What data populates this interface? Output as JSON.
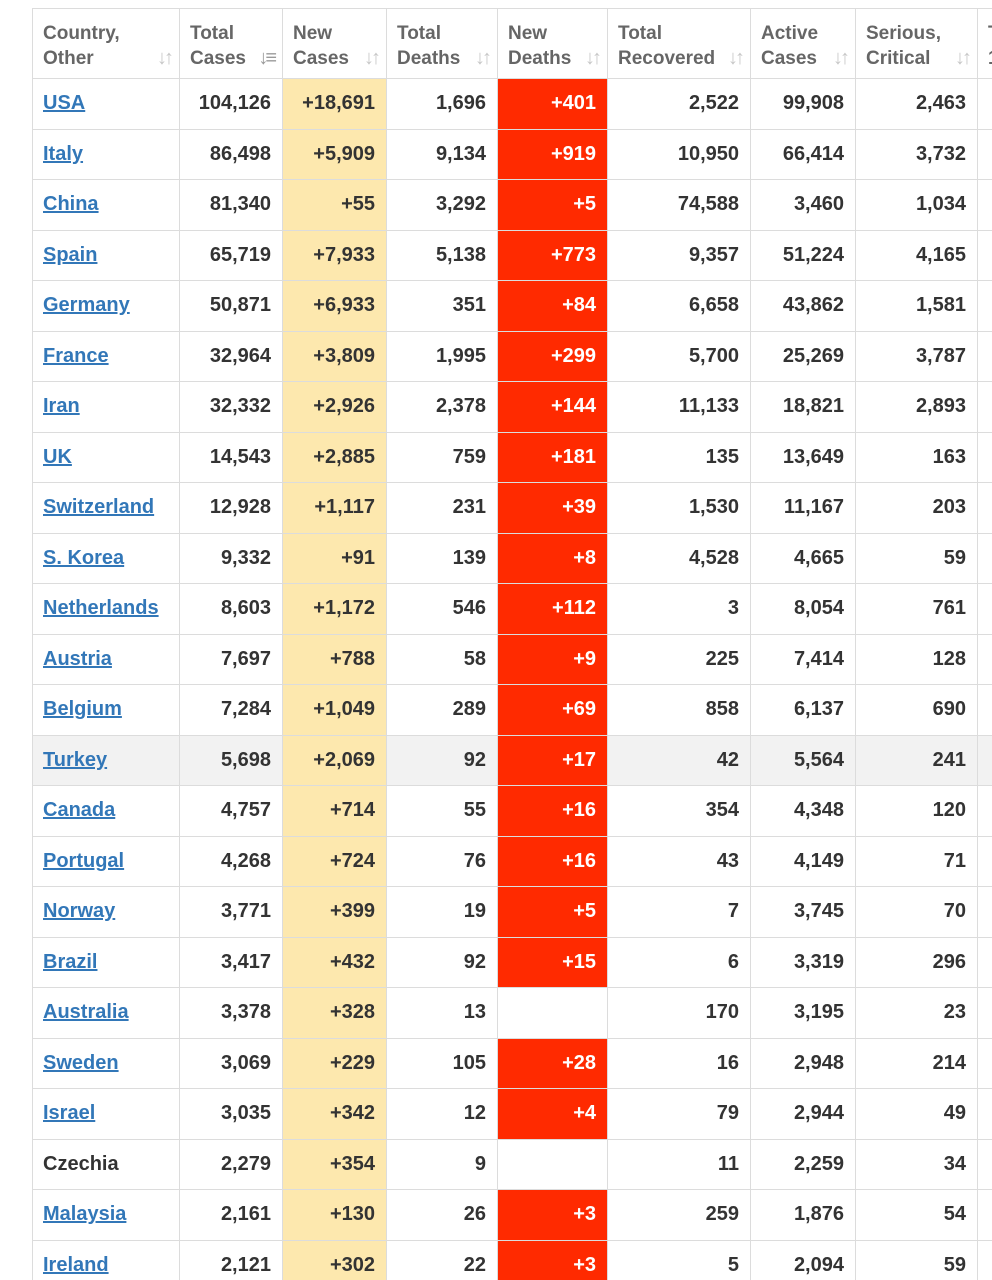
{
  "headers": [
    {
      "line1": "Country,",
      "line2": "Other",
      "sort": "↓↑",
      "active": false
    },
    {
      "line1": "Total",
      "line2": "Cases",
      "sort": "↓≡",
      "active": true
    },
    {
      "line1": "New",
      "line2": "Cases",
      "sort": "↓↑",
      "active": false
    },
    {
      "line1": "Total",
      "line2": "Deaths",
      "sort": "↓↑",
      "active": false
    },
    {
      "line1": "New",
      "line2": "Deaths",
      "sort": "↓↑",
      "active": false
    },
    {
      "line1": "Total",
      "line2": "Recovered",
      "sort": "↓↑",
      "active": false
    },
    {
      "line1": "Active",
      "line2": "Cases",
      "sort": "↓↑",
      "active": false
    },
    {
      "line1": "Serious,",
      "line2": "Critical",
      "sort": "↓↑",
      "active": false
    },
    {
      "line1": "T",
      "line2": "1",
      "sort": "",
      "active": false
    }
  ],
  "rows": [
    {
      "country": "USA",
      "link": true,
      "total_cases": "104,126",
      "new_cases": "+18,691",
      "total_deaths": "1,696",
      "new_deaths": "+401",
      "total_recovered": "2,522",
      "active_cases": "99,908",
      "serious_critical": "2,463"
    },
    {
      "country": "Italy",
      "link": true,
      "total_cases": "86,498",
      "new_cases": "+5,909",
      "total_deaths": "9,134",
      "new_deaths": "+919",
      "total_recovered": "10,950",
      "active_cases": "66,414",
      "serious_critical": "3,732"
    },
    {
      "country": "China",
      "link": true,
      "total_cases": "81,340",
      "new_cases": "+55",
      "total_deaths": "3,292",
      "new_deaths": "+5",
      "total_recovered": "74,588",
      "active_cases": "3,460",
      "serious_critical": "1,034"
    },
    {
      "country": "Spain",
      "link": true,
      "total_cases": "65,719",
      "new_cases": "+7,933",
      "total_deaths": "5,138",
      "new_deaths": "+773",
      "total_recovered": "9,357",
      "active_cases": "51,224",
      "serious_critical": "4,165"
    },
    {
      "country": "Germany",
      "link": true,
      "total_cases": "50,871",
      "new_cases": "+6,933",
      "total_deaths": "351",
      "new_deaths": "+84",
      "total_recovered": "6,658",
      "active_cases": "43,862",
      "serious_critical": "1,581"
    },
    {
      "country": "France",
      "link": true,
      "total_cases": "32,964",
      "new_cases": "+3,809",
      "total_deaths": "1,995",
      "new_deaths": "+299",
      "total_recovered": "5,700",
      "active_cases": "25,269",
      "serious_critical": "3,787"
    },
    {
      "country": "Iran",
      "link": true,
      "total_cases": "32,332",
      "new_cases": "+2,926",
      "total_deaths": "2,378",
      "new_deaths": "+144",
      "total_recovered": "11,133",
      "active_cases": "18,821",
      "serious_critical": "2,893"
    },
    {
      "country": "UK",
      "link": true,
      "total_cases": "14,543",
      "new_cases": "+2,885",
      "total_deaths": "759",
      "new_deaths": "+181",
      "total_recovered": "135",
      "active_cases": "13,649",
      "serious_critical": "163"
    },
    {
      "country": "Switzerland",
      "link": true,
      "total_cases": "12,928",
      "new_cases": "+1,117",
      "total_deaths": "231",
      "new_deaths": "+39",
      "total_recovered": "1,530",
      "active_cases": "11,167",
      "serious_critical": "203"
    },
    {
      "country": "S. Korea",
      "link": true,
      "total_cases": "9,332",
      "new_cases": "+91",
      "total_deaths": "139",
      "new_deaths": "+8",
      "total_recovered": "4,528",
      "active_cases": "4,665",
      "serious_critical": "59"
    },
    {
      "country": "Netherlands",
      "link": true,
      "total_cases": "8,603",
      "new_cases": "+1,172",
      "total_deaths": "546",
      "new_deaths": "+112",
      "total_recovered": "3",
      "active_cases": "8,054",
      "serious_critical": "761"
    },
    {
      "country": "Austria",
      "link": true,
      "total_cases": "7,697",
      "new_cases": "+788",
      "total_deaths": "58",
      "new_deaths": "+9",
      "total_recovered": "225",
      "active_cases": "7,414",
      "serious_critical": "128"
    },
    {
      "country": "Belgium",
      "link": true,
      "total_cases": "7,284",
      "new_cases": "+1,049",
      "total_deaths": "289",
      "new_deaths": "+69",
      "total_recovered": "858",
      "active_cases": "6,137",
      "serious_critical": "690"
    },
    {
      "country": "Turkey",
      "link": true,
      "highlight": true,
      "total_cases": "5,698",
      "new_cases": "+2,069",
      "total_deaths": "92",
      "new_deaths": "+17",
      "total_recovered": "42",
      "active_cases": "5,564",
      "serious_critical": "241"
    },
    {
      "country": "Canada",
      "link": true,
      "total_cases": "4,757",
      "new_cases": "+714",
      "total_deaths": "55",
      "new_deaths": "+16",
      "total_recovered": "354",
      "active_cases": "4,348",
      "serious_critical": "120"
    },
    {
      "country": "Portugal",
      "link": true,
      "total_cases": "4,268",
      "new_cases": "+724",
      "total_deaths": "76",
      "new_deaths": "+16",
      "total_recovered": "43",
      "active_cases": "4,149",
      "serious_critical": "71"
    },
    {
      "country": "Norway",
      "link": true,
      "total_cases": "3,771",
      "new_cases": "+399",
      "total_deaths": "19",
      "new_deaths": "+5",
      "total_recovered": "7",
      "active_cases": "3,745",
      "serious_critical": "70"
    },
    {
      "country": "Brazil",
      "link": true,
      "total_cases": "3,417",
      "new_cases": "+432",
      "total_deaths": "92",
      "new_deaths": "+15",
      "total_recovered": "6",
      "active_cases": "3,319",
      "serious_critical": "296"
    },
    {
      "country": "Australia",
      "link": true,
      "total_cases": "3,378",
      "new_cases": "+328",
      "total_deaths": "13",
      "new_deaths": "",
      "total_recovered": "170",
      "active_cases": "3,195",
      "serious_critical": "23"
    },
    {
      "country": "Sweden",
      "link": true,
      "total_cases": "3,069",
      "new_cases": "+229",
      "total_deaths": "105",
      "new_deaths": "+28",
      "total_recovered": "16",
      "active_cases": "2,948",
      "serious_critical": "214"
    },
    {
      "country": "Israel",
      "link": true,
      "total_cases": "3,035",
      "new_cases": "+342",
      "total_deaths": "12",
      "new_deaths": "+4",
      "total_recovered": "79",
      "active_cases": "2,944",
      "serious_critical": "49"
    },
    {
      "country": "Czechia",
      "link": false,
      "total_cases": "2,279",
      "new_cases": "+354",
      "total_deaths": "9",
      "new_deaths": "",
      "total_recovered": "11",
      "active_cases": "2,259",
      "serious_critical": "34"
    },
    {
      "country": "Malaysia",
      "link": true,
      "total_cases": "2,161",
      "new_cases": "+130",
      "total_deaths": "26",
      "new_deaths": "+3",
      "total_recovered": "259",
      "active_cases": "1,876",
      "serious_critical": "54"
    },
    {
      "country": "Ireland",
      "link": true,
      "total_cases": "2,121",
      "new_cases": "+302",
      "total_deaths": "22",
      "new_deaths": "+3",
      "total_recovered": "5",
      "active_cases": "2,094",
      "serious_critical": "59"
    }
  ],
  "colors": {
    "new_cases_bg": "#fde8ae",
    "new_deaths_bg": "#ff2a00",
    "link": "#3277b8",
    "highlight_row": "#f2f2f2",
    "header_text": "#666666"
  }
}
